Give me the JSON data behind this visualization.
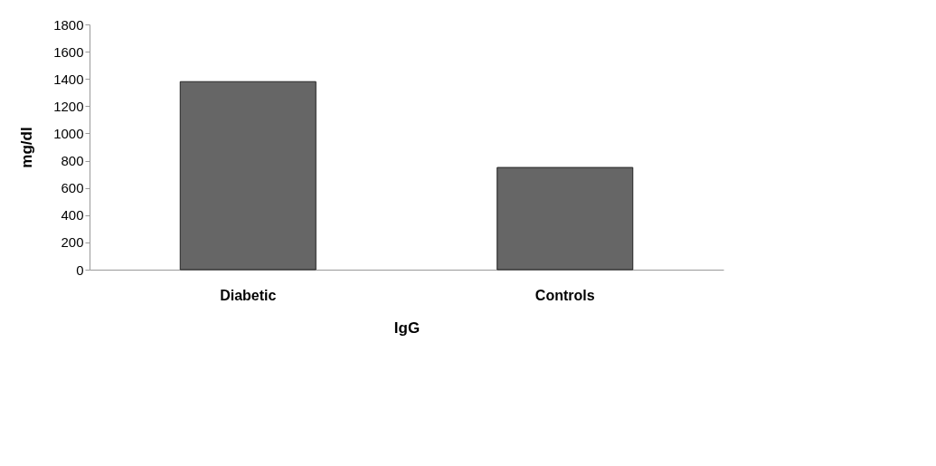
{
  "chart_data": {
    "type": "bar",
    "categories": [
      "Diabetic",
      "Controls"
    ],
    "values": [
      1380,
      750
    ],
    "color": "#666666",
    "xlabel": "IgG",
    "ylabel": "mg/dl",
    "ylim": [
      0,
      1800
    ],
    "yticks": [
      0,
      200,
      400,
      600,
      800,
      1000,
      1200,
      1400,
      1600,
      1800
    ],
    "grid": false
  }
}
